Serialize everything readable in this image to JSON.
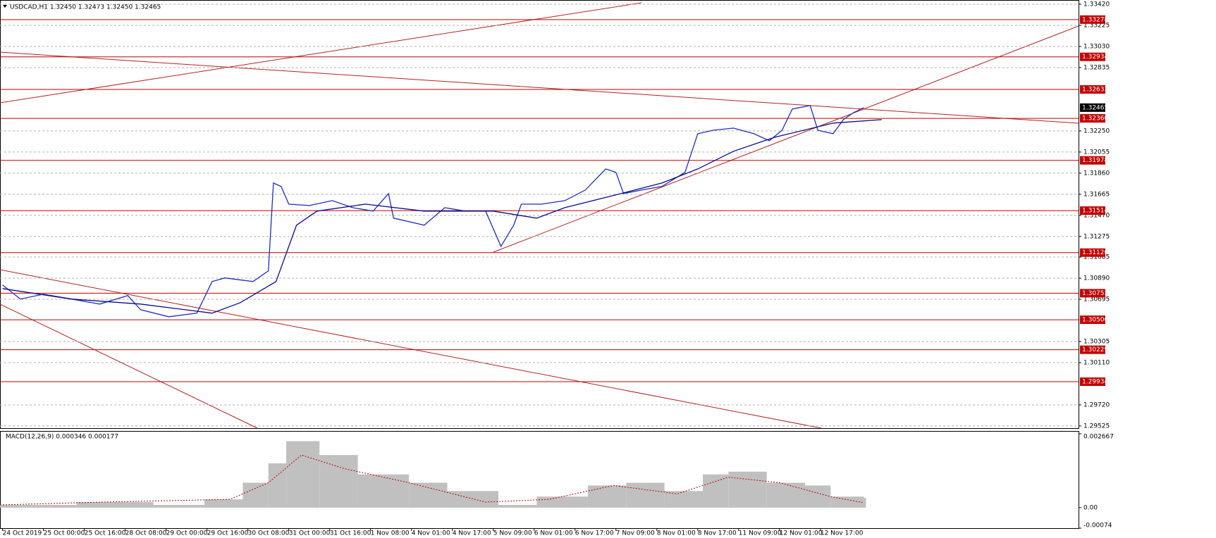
{
  "chart_data": {
    "type": "line",
    "title": "USDCAD,H1  1.32450 1.32473 1.32450 1.32465",
    "color": "#1e2fb4",
    "xlim": [
      0,
      422
    ],
    "ylim": [
      1.29505,
      1.33459
    ],
    "grid": true,
    "xticks": [
      {
        "value": 1,
        "label": "24 Oct 2019"
      },
      {
        "value": 17,
        "label": "25 Oct 00:00"
      },
      {
        "value": 33,
        "label": "25 Oct 16:00"
      },
      {
        "value": 49,
        "label": "28 Oct 08:00"
      },
      {
        "value": 65,
        "label": "29 Oct 00:00"
      },
      {
        "value": 81,
        "label": "29 Oct 16:00"
      },
      {
        "value": 97,
        "label": "30 Oct 08:00"
      },
      {
        "value": 113,
        "label": "31 Oct 00:00"
      },
      {
        "value": 129,
        "label": "31 Oct 16:00"
      },
      {
        "value": 145,
        "label": "1 Nov 08:00"
      },
      {
        "value": 161,
        "label": "4 Nov 01:00"
      },
      {
        "value": 177,
        "label": "4 Nov 17:00"
      },
      {
        "value": 193,
        "label": "5 Nov 09:00"
      },
      {
        "value": 209,
        "label": "6 Nov 01:00"
      },
      {
        "value": 225,
        "label": "6 Nov 17:00"
      },
      {
        "value": 241,
        "label": "7 Nov 09:00"
      },
      {
        "value": 257,
        "label": "8 Nov 01:00"
      },
      {
        "value": 273,
        "label": "8 Nov 17:00"
      },
      {
        "value": 289,
        "label": "11 Nov 09:00"
      },
      {
        "value": 305,
        "label": "12 Nov 01:00"
      },
      {
        "value": 321,
        "label": "12 Nov 17:00"
      }
    ],
    "yticks": [
      {
        "value": 1.3342,
        "label": "1.33420"
      },
      {
        "value": 1.33225,
        "label": "1.33225"
      },
      {
        "value": 1.3303,
        "label": "1.33030"
      },
      {
        "value": 1.32835,
        "label": "1.32835"
      },
      {
        "value": 1.3225,
        "label": "1.32250"
      },
      {
        "value": 1.32055,
        "label": "1.32055"
      },
      {
        "value": 1.3186,
        "label": "1.31860"
      },
      {
        "value": 1.31665,
        "label": "1.31665"
      },
      {
        "value": 1.3147,
        "label": "1.31470"
      },
      {
        "value": 1.31275,
        "label": "1.31275"
      },
      {
        "value": 1.31085,
        "label": "1.31085"
      },
      {
        "value": 1.3089,
        "label": "1.30890"
      },
      {
        "value": 1.30695,
        "label": "1.30695"
      },
      {
        "value": 1.30305,
        "label": "1.30305"
      },
      {
        "value": 1.3011,
        "label": "1.30110"
      },
      {
        "value": 1.2972,
        "label": "1.29720"
      },
      {
        "value": 1.29525,
        "label": "1.29525"
      }
    ],
    "levels": [
      {
        "value": 1.33278,
        "label": "1.33278"
      },
      {
        "value": 1.32934,
        "label": "1.32934"
      },
      {
        "value": 1.32633,
        "label": "1.32633"
      },
      {
        "value": 1.32366,
        "label": "1.32366"
      },
      {
        "value": 1.31978,
        "label": "1.31978"
      },
      {
        "value": 1.31514,
        "label": "1.31514"
      },
      {
        "value": 1.31126,
        "label": "1.31126"
      },
      {
        "value": 1.30751,
        "label": "1.30751"
      },
      {
        "value": 1.30506,
        "label": "1.30506"
      },
      {
        "value": 1.30229,
        "label": "1.30229"
      },
      {
        "value": 1.29934,
        "label": "1.29934"
      }
    ],
    "level_color": "#c00000",
    "current_price": {
      "value": 1.32465,
      "label": "1.32465"
    },
    "series": [
      {
        "color": "#1e2fb4",
        "x": [
          1,
          8,
          17,
          28,
          39,
          50,
          55,
          66,
          77,
          83,
          88,
          99,
          105,
          107,
          110,
          113,
          121,
          130,
          138,
          146,
          152,
          154,
          166,
          174,
          182,
          190,
          196,
          201,
          204,
          212,
          221,
          229,
          237,
          241,
          244,
          251,
          259,
          268,
          273,
          279,
          287,
          295,
          301,
          306,
          310,
          317,
          320,
          326,
          330,
          334,
          338
        ],
        "values": [
          1.30827,
          1.30697,
          1.30742,
          1.30697,
          1.30651,
          1.30729,
          1.30599,
          1.30534,
          1.30567,
          1.30859,
          1.30892,
          1.30859,
          1.30957,
          1.31769,
          1.31737,
          1.31574,
          1.31561,
          1.31606,
          1.31541,
          1.31509,
          1.31671,
          1.31444,
          1.31379,
          1.31541,
          1.31509,
          1.31509,
          1.31184,
          1.31379,
          1.31574,
          1.31574,
          1.31606,
          1.31704,
          1.31899,
          1.31867,
          1.31671,
          1.31704,
          1.31737,
          1.31867,
          1.32224,
          1.32256,
          1.32276,
          1.32224,
          1.32159,
          1.32256,
          1.32452,
          1.32484,
          1.32256,
          1.32224,
          1.32354,
          1.32419,
          1.32465
        ]
      },
      {
        "color": "#0a0a8c",
        "x": [
          1,
          28,
          55,
          83,
          94,
          108,
          116,
          124,
          143,
          166,
          193,
          210,
          221,
          243,
          259,
          273,
          287,
          303,
          326,
          345
        ],
        "values": [
          1.30794,
          1.30697,
          1.30651,
          1.30567,
          1.30664,
          1.30859,
          1.31379,
          1.31509,
          1.31574,
          1.31509,
          1.31509,
          1.31444,
          1.31541,
          1.31671,
          1.31769,
          1.31899,
          1.32062,
          1.32191,
          1.32322,
          1.32354
        ]
      }
    ],
    "macd": {
      "label": "MACD(12,26,9) 0.000346 0.000177",
      "ylim": [
        -0.00074,
        0.002667
      ],
      "yticks": [
        {
          "value": 0.002667,
          "label": "0.002667"
        },
        {
          "value": 0,
          "label": "0.00"
        },
        {
          "value": -0.00074,
          "label": "-0.00074"
        }
      ],
      "hist_color": "#c0c0c0",
      "signal_color": "#c00000",
      "x": [
        0,
        30,
        60,
        80,
        95,
        105,
        112,
        125,
        140,
        160,
        175,
        195,
        210,
        230,
        245,
        260,
        275,
        285,
        300,
        315,
        325,
        338
      ],
      "values": [
        0.0001,
        0.0002,
        0.0001,
        0.0003,
        0.0009,
        0.0016,
        0.0024,
        0.0019,
        0.0012,
        0.0009,
        0.0006,
        0.0001,
        0.0004,
        0.0008,
        0.0009,
        0.0006,
        0.0012,
        0.0013,
        0.0009,
        0.0008,
        0.0004,
        0.000346
      ],
      "signal_x": [
        0,
        40,
        90,
        105,
        118,
        135,
        160,
        190,
        215,
        240,
        265,
        285,
        305,
        325,
        338
      ],
      "signal": [
        0.0001,
        0.0002,
        0.0003,
        0.0009,
        0.0019,
        0.0014,
        0.0009,
        0.0002,
        0.0003,
        0.0008,
        0.0005,
        0.0011,
        0.0009,
        0.0004,
        0.000177
      ]
    }
  }
}
